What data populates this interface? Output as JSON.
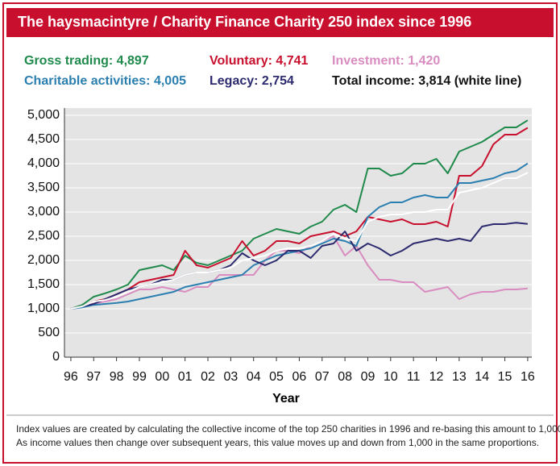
{
  "chart_data": {
    "type": "line",
    "title": "The haysmacintyre / Charity Finance Charity 250 index since 1996",
    "x_label": "Year",
    "footnote": [
      "Index values are created by calculating the collective income of the top 250 charities in 1996 and re-basing this amount to 1,000.",
      "As income values then change over subsequent years, this value moves up and down from 1,000 in the same proportions."
    ],
    "x": [
      1996,
      1996.5,
      1997,
      1997.5,
      1998,
      1998.5,
      1999,
      1999.5,
      2000,
      2000.5,
      2001,
      2001.5,
      2002,
      2002.5,
      2003,
      2003.5,
      2004,
      2004.5,
      2005,
      2005.5,
      2006,
      2006.5,
      2007,
      2007.5,
      2008,
      2008.5,
      2009,
      2009.5,
      2010,
      2010.5,
      2011,
      2011.5,
      2012,
      2012.5,
      2013,
      2013.5,
      2014,
      2014.5,
      2015,
      2015.5,
      2016
    ],
    "series": [
      {
        "name": "Gross trading: 4,897",
        "color": "#1f8a4c",
        "label_color": "#1f8a4c",
        "values": [
          1000,
          1080,
          1250,
          1320,
          1400,
          1500,
          1800,
          1850,
          1900,
          1800,
          2100,
          1950,
          1900,
          2000,
          2100,
          2200,
          2450,
          2550,
          2650,
          2600,
          2550,
          2700,
          2800,
          3050,
          3150,
          3000,
          3900,
          3900,
          3750,
          3800,
          4000,
          4000,
          4100,
          3800,
          4250,
          4350,
          4450,
          4600,
          4750,
          4750,
          4897
        ]
      },
      {
        "name": "Voluntary: 4,741",
        "color": "#c8102e",
        "label_color": "#c8102e",
        "values": [
          1000,
          1050,
          1150,
          1200,
          1300,
          1400,
          1550,
          1600,
          1650,
          1700,
          2200,
          1900,
          1850,
          1950,
          2050,
          2400,
          2100,
          2200,
          2400,
          2400,
          2350,
          2500,
          2550,
          2600,
          2500,
          2600,
          2900,
          2850,
          2800,
          2850,
          2750,
          2750,
          2800,
          2700,
          3750,
          3750,
          3950,
          4400,
          4600,
          4600,
          4741
        ]
      },
      {
        "name": "Investment: 1,420",
        "color": "#d98cc0",
        "label_color": "#d98cc0",
        "values": [
          1000,
          1050,
          1100,
          1150,
          1200,
          1300,
          1400,
          1400,
          1450,
          1400,
          1350,
          1450,
          1450,
          1700,
          1700,
          1700,
          1700,
          2000,
          2200,
          2200,
          2150,
          2300,
          2400,
          2500,
          2100,
          2300,
          1900,
          1600,
          1600,
          1550,
          1550,
          1350,
          1400,
          1450,
          1200,
          1300,
          1350,
          1350,
          1400,
          1400,
          1420
        ]
      },
      {
        "name": "Charitable activities: 4,005",
        "color": "#2b7fb0",
        "label_color": "#2b7fb0",
        "values": [
          1000,
          1030,
          1080,
          1100,
          1120,
          1150,
          1200,
          1250,
          1300,
          1350,
          1450,
          1500,
          1550,
          1600,
          1650,
          1700,
          1900,
          2000,
          2100,
          2150,
          2200,
          2250,
          2350,
          2450,
          2400,
          2300,
          2900,
          3100,
          3200,
          3200,
          3300,
          3350,
          3300,
          3300,
          3600,
          3600,
          3650,
          3700,
          3800,
          3850,
          4005
        ]
      },
      {
        "name": "Legacy: 2,754",
        "color": "#2c2a6e",
        "label_color": "#2c2a6e",
        "values": [
          1000,
          1050,
          1100,
          1200,
          1300,
          1400,
          1450,
          1500,
          1600,
          1600,
          1700,
          1750,
          1750,
          1800,
          1900,
          2150,
          2000,
          1900,
          2000,
          2200,
          2200,
          2050,
          2300,
          2350,
          2600,
          2200,
          2350,
          2250,
          2100,
          2200,
          2350,
          2400,
          2450,
          2400,
          2450,
          2400,
          2700,
          2750,
          2750,
          2780,
          2754
        ]
      },
      {
        "name": "Total income: 3,814 (white line)",
        "color": "#ffffff",
        "label_color": "#111111",
        "values": [
          1000,
          1050,
          1150,
          1180,
          1250,
          1350,
          1450,
          1500,
          1550,
          1600,
          1700,
          1750,
          1750,
          1800,
          1850,
          2000,
          2050,
          2100,
          2200,
          2250,
          2250,
          2300,
          2400,
          2550,
          2450,
          2400,
          2800,
          2900,
          2950,
          2950,
          3000,
          3000,
          3050,
          3050,
          3400,
          3450,
          3500,
          3600,
          3700,
          3700,
          3814
        ]
      }
    ],
    "xlim": [
      1995.72,
      2016.18
    ],
    "xticks": [
      {
        "value": 1996,
        "label": "96"
      },
      {
        "value": 1997,
        "label": "97"
      },
      {
        "value": 1998,
        "label": "98"
      },
      {
        "value": 1999,
        "label": "99"
      },
      {
        "value": 2000,
        "label": "00"
      },
      {
        "value": 2001,
        "label": "01"
      },
      {
        "value": 2002,
        "label": "02"
      },
      {
        "value": 2003,
        "label": "03"
      },
      {
        "value": 2004,
        "label": "04"
      },
      {
        "value": 2005,
        "label": "05"
      },
      {
        "value": 2006,
        "label": "06"
      },
      {
        "value": 2007,
        "label": "07"
      },
      {
        "value": 2008,
        "label": "08"
      },
      {
        "value": 2009,
        "label": "09"
      },
      {
        "value": 2010,
        "label": "10"
      },
      {
        "value": 2011,
        "label": "11"
      },
      {
        "value": 2012,
        "label": "12"
      },
      {
        "value": 2013,
        "label": "13"
      },
      {
        "value": 2014,
        "label": "14"
      },
      {
        "value": 2015,
        "label": "15"
      },
      {
        "value": 2016,
        "label": "16"
      }
    ],
    "ylim": [
      0,
      5000
    ],
    "yticks": [
      0,
      500,
      {
        "value": 1000,
        "label": "1,000"
      },
      {
        "value": 1500,
        "label": "1,500"
      },
      {
        "value": 2000,
        "label": "2,000"
      },
      {
        "value": 2500,
        "label": "2,500"
      },
      {
        "value": 3000,
        "label": "3,000"
      },
      {
        "value": 3500,
        "label": "3,500"
      },
      {
        "value": 4000,
        "label": "4,000"
      },
      {
        "value": 4500,
        "label": "4,500"
      },
      {
        "value": 5000,
        "label": "5,000"
      }
    ],
    "grid": true
  }
}
